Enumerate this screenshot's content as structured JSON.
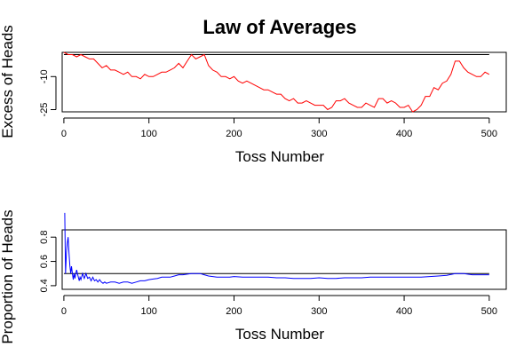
{
  "figure": {
    "title": "Law of Averages"
  },
  "chart_data": [
    {
      "type": "line",
      "ylabel": "Excess of Heads",
      "xlabel": "Toss Number",
      "xlim": [
        -2,
        520
      ],
      "ylim": [
        -26,
        1
      ],
      "xticks": [
        0,
        100,
        200,
        300,
        400,
        500
      ],
      "yticks": [
        -25,
        -10
      ],
      "reference_line": 0,
      "series": [
        {
          "color": "#ff0000",
          "x": [
            0,
            5,
            10,
            15,
            20,
            25,
            30,
            35,
            40,
            45,
            50,
            55,
            60,
            65,
            70,
            75,
            80,
            85,
            90,
            95,
            100,
            105,
            110,
            115,
            120,
            125,
            130,
            135,
            140,
            145,
            150,
            155,
            160,
            165,
            170,
            175,
            180,
            185,
            190,
            195,
            200,
            205,
            210,
            215,
            220,
            225,
            230,
            235,
            240,
            245,
            250,
            255,
            260,
            265,
            270,
            275,
            280,
            285,
            290,
            295,
            300,
            305,
            310,
            315,
            320,
            325,
            330,
            335,
            340,
            345,
            350,
            355,
            360,
            365,
            370,
            375,
            380,
            385,
            390,
            395,
            400,
            405,
            410,
            415,
            420,
            425,
            430,
            435,
            440,
            445,
            450,
            455,
            460,
            465,
            470,
            475,
            480,
            485,
            490,
            495,
            500
          ],
          "y": [
            1,
            0,
            0,
            -1,
            0,
            -1,
            -2,
            -2,
            -4,
            -6,
            -5,
            -7,
            -7,
            -8,
            -9,
            -8,
            -10,
            -10,
            -11,
            -9,
            -10,
            -10,
            -9,
            -8,
            -8,
            -7,
            -6,
            -4,
            -6,
            -3,
            0,
            -2,
            -1,
            0,
            -5,
            -7,
            -8,
            -10,
            -10,
            -11,
            -10,
            -12,
            -13,
            -12,
            -13,
            -14,
            -15,
            -16,
            -16,
            -17,
            -18,
            -18,
            -20,
            -21,
            -20,
            -22,
            -22,
            -21,
            -22,
            -23,
            -23,
            -23,
            -25,
            -24,
            -21,
            -21,
            -20,
            -22,
            -23,
            -24,
            -24,
            -22,
            -23,
            -24,
            -20,
            -20,
            -22,
            -21,
            -22,
            -24,
            -24,
            -23,
            -26,
            -25,
            -23,
            -19,
            -19,
            -15,
            -16,
            -13,
            -12,
            -9,
            -3,
            -3,
            -6,
            -8,
            -9,
            -10,
            -10,
            -8,
            -9
          ]
        }
      ]
    },
    {
      "type": "line",
      "ylabel": "Proportion of Heads",
      "xlabel": "Toss Number",
      "xlim": [
        -2,
        520
      ],
      "ylim": [
        0.37,
        0.86
      ],
      "xticks": [
        0,
        100,
        200,
        300,
        400,
        500
      ],
      "yticks": [
        0.4,
        0.6,
        0.8
      ],
      "reference_line": 0.5,
      "series": [
        {
          "color": "#0000ff",
          "x": [
            1,
            2,
            3,
            4,
            5,
            6,
            7,
            8,
            9,
            10,
            11,
            12,
            13,
            14,
            15,
            16,
            17,
            18,
            19,
            20,
            22,
            24,
            26,
            28,
            30,
            32,
            34,
            36,
            38,
            40,
            42,
            44,
            46,
            48,
            50,
            55,
            60,
            65,
            70,
            75,
            80,
            85,
            90,
            95,
            100,
            105,
            110,
            115,
            120,
            125,
            130,
            135,
            140,
            145,
            150,
            155,
            160,
            165,
            170,
            175,
            180,
            185,
            190,
            195,
            200,
            210,
            220,
            230,
            240,
            250,
            260,
            270,
            280,
            290,
            300,
            310,
            320,
            330,
            340,
            350,
            360,
            370,
            380,
            390,
            400,
            410,
            420,
            430,
            440,
            450,
            460,
            470,
            480,
            490,
            500
          ],
          "y": [
            1.0,
            0.5,
            0.67,
            0.75,
            0.8,
            0.67,
            0.57,
            0.5,
            0.56,
            0.5,
            0.45,
            0.5,
            0.46,
            0.5,
            0.53,
            0.5,
            0.47,
            0.44,
            0.47,
            0.45,
            0.5,
            0.46,
            0.5,
            0.46,
            0.47,
            0.44,
            0.47,
            0.44,
            0.45,
            0.43,
            0.45,
            0.43,
            0.42,
            0.43,
            0.42,
            0.43,
            0.43,
            0.42,
            0.43,
            0.43,
            0.42,
            0.43,
            0.44,
            0.44,
            0.45,
            0.455,
            0.46,
            0.47,
            0.47,
            0.47,
            0.48,
            0.49,
            0.49,
            0.495,
            0.5,
            0.5,
            0.5,
            0.49,
            0.48,
            0.475,
            0.47,
            0.47,
            0.47,
            0.47,
            0.475,
            0.47,
            0.47,
            0.47,
            0.47,
            0.465,
            0.465,
            0.46,
            0.46,
            0.46,
            0.465,
            0.46,
            0.46,
            0.465,
            0.465,
            0.465,
            0.47,
            0.47,
            0.47,
            0.47,
            0.47,
            0.47,
            0.47,
            0.475,
            0.48,
            0.485,
            0.5,
            0.5,
            0.49,
            0.49,
            0.49
          ]
        }
      ]
    }
  ]
}
